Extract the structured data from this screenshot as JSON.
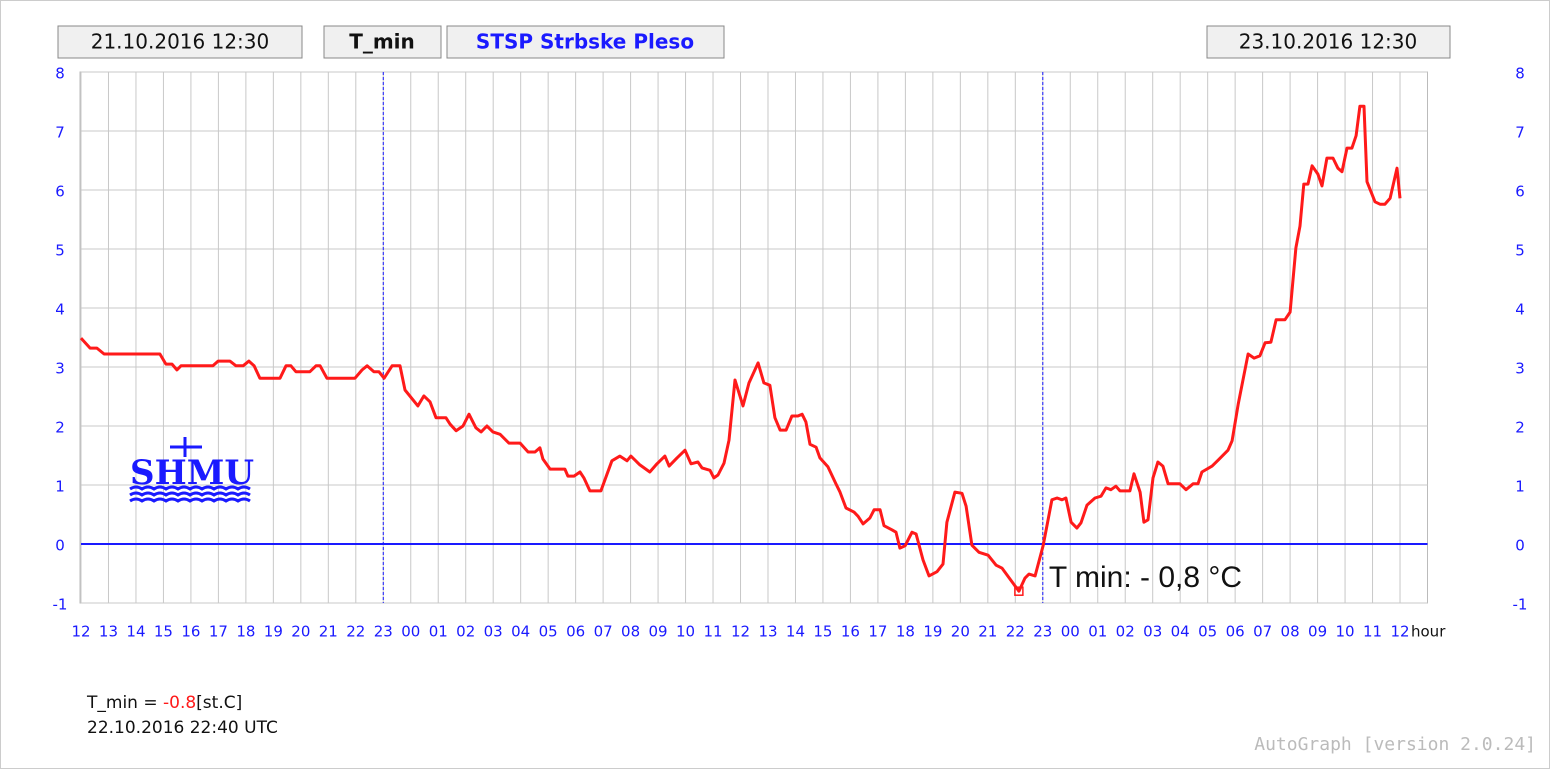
{
  "header": {
    "start": "21.10.2016 12:30",
    "variable": "T_min",
    "station": "STSP Strbske Pleso",
    "end": "23.10.2016 12:30"
  },
  "chart_data": {
    "type": "line",
    "color": "#ff1a1a",
    "axis_color": "#1a1aff",
    "grid": true,
    "logo": "SHMU",
    "xlabel": "hour",
    "xlim": [
      0,
      49
    ],
    "ylim": [
      -1,
      8
    ],
    "yticks": [
      -1,
      0,
      1,
      2,
      3,
      4,
      5,
      6,
      7,
      8
    ],
    "xticks": [
      {
        "value": 0,
        "label": "12"
      },
      {
        "value": 1,
        "label": "13"
      },
      {
        "value": 2,
        "label": "14"
      },
      {
        "value": 3,
        "label": "15"
      },
      {
        "value": 4,
        "label": "16"
      },
      {
        "value": 5,
        "label": "17"
      },
      {
        "value": 6,
        "label": "18"
      },
      {
        "value": 7,
        "label": "19"
      },
      {
        "value": 8,
        "label": "20"
      },
      {
        "value": 9,
        "label": "21"
      },
      {
        "value": 10,
        "label": "22"
      },
      {
        "value": 11,
        "label": "23"
      },
      {
        "value": 12,
        "label": "00"
      },
      {
        "value": 13,
        "label": "01"
      },
      {
        "value": 14,
        "label": "02"
      },
      {
        "value": 15,
        "label": "03"
      },
      {
        "value": 16,
        "label": "04"
      },
      {
        "value": 17,
        "label": "05"
      },
      {
        "value": 18,
        "label": "06"
      },
      {
        "value": 19,
        "label": "07"
      },
      {
        "value": 20,
        "label": "08"
      },
      {
        "value": 21,
        "label": "09"
      },
      {
        "value": 22,
        "label": "10"
      },
      {
        "value": 23,
        "label": "11"
      },
      {
        "value": 24,
        "label": "12"
      },
      {
        "value": 25,
        "label": "13"
      },
      {
        "value": 26,
        "label": "14"
      },
      {
        "value": 27,
        "label": "15"
      },
      {
        "value": 28,
        "label": "16"
      },
      {
        "value": 29,
        "label": "17"
      },
      {
        "value": 30,
        "label": "18"
      },
      {
        "value": 31,
        "label": "19"
      },
      {
        "value": 32,
        "label": "20"
      },
      {
        "value": 33,
        "label": "21"
      },
      {
        "value": 34,
        "label": "22"
      },
      {
        "value": 35,
        "label": "23"
      },
      {
        "value": 36,
        "label": "00"
      },
      {
        "value": 37,
        "label": "01"
      },
      {
        "value": 38,
        "label": "02"
      },
      {
        "value": 39,
        "label": "03"
      },
      {
        "value": 40,
        "label": "04"
      },
      {
        "value": 41,
        "label": "05"
      },
      {
        "value": 42,
        "label": "06"
      },
      {
        "value": 43,
        "label": "07"
      },
      {
        "value": 44,
        "label": "08"
      },
      {
        "value": 45,
        "label": "09"
      },
      {
        "value": 46,
        "label": "10"
      },
      {
        "value": 47,
        "label": "11"
      },
      {
        "value": 48,
        "label": "12"
      }
    ],
    "day_lines": [
      11,
      35
    ],
    "x": [
      0,
      0.33,
      0.58,
      0.84,
      2.87,
      3.09,
      3.31,
      3.49,
      3.64,
      3.78,
      4.8,
      4.99,
      5.42,
      5.64,
      5.9,
      6.11,
      6.3,
      6.51,
      7.24,
      7.46,
      7.64,
      7.82,
      8.33,
      8.55,
      8.7,
      8.95,
      9.97,
      10.23,
      10.41,
      10.66,
      10.84,
      11.03,
      11.32,
      11.61,
      11.79,
      12.26,
      12.48,
      12.7,
      12.92,
      13.28,
      13.43,
      13.65,
      13.9,
      14.12,
      14.37,
      14.56,
      14.77,
      14.99,
      15.25,
      15.57,
      15.98,
      16.27,
      16.52,
      16.7,
      16.81,
      17.07,
      17.61,
      17.72,
      17.94,
      18.16,
      18.3,
      18.52,
      18.92,
      19.32,
      19.61,
      19.87,
      20.01,
      20.34,
      20.7,
      20.96,
      21.25,
      21.4,
      21.69,
      21.98,
      22.2,
      22.45,
      22.6,
      22.89,
      23.03,
      23.18,
      23.4,
      23.58,
      23.8,
      24.09,
      24.31,
      24.64,
      24.85,
      25.07,
      25.25,
      25.44,
      25.66,
      25.87,
      26.09,
      26.24,
      26.38,
      26.53,
      26.75,
      26.89,
      27.18,
      27.47,
      27.62,
      27.84,
      28.13,
      28.28,
      28.46,
      28.71,
      28.86,
      29.08,
      29.22,
      29.51,
      29.66,
      29.8,
      29.99,
      30.24,
      30.39,
      30.64,
      30.86,
      31.15,
      31.37,
      31.51,
      31.8,
      32.06,
      32.21,
      32.42,
      32.68,
      33.01,
      33.3,
      33.52,
      33.99,
      34.13,
      34.35,
      34.5,
      34.72,
      35.01,
      35.33,
      35.52,
      35.7,
      35.84,
      36.03,
      36.24,
      36.39,
      36.61,
      36.9,
      37.12,
      37.3,
      37.48,
      37.66,
      37.81,
      38.17,
      38.32,
      38.54,
      38.68,
      38.83,
      39.01,
      39.19,
      39.37,
      39.56,
      39.99,
      40.21,
      40.47,
      40.65,
      40.79,
      41.16,
      41.38,
      41.74,
      41.89,
      42.11,
      42.47,
      42.69,
      42.9,
      43.09,
      43.3,
      43.49,
      43.81,
      44.0,
      44.21,
      44.36,
      44.5,
      44.65,
      44.8,
      45.01,
      45.16,
      45.34,
      45.56,
      45.74,
      45.89,
      46.07,
      46.25,
      46.4,
      46.54,
      46.69,
      46.8,
      47.09,
      47.27,
      47.45,
      47.64,
      47.89,
      48.0
    ],
    "values": [
      3.49,
      3.32,
      3.32,
      3.22,
      3.22,
      3.05,
      3.05,
      2.95,
      3.02,
      3.02,
      3.02,
      3.1,
      3.1,
      3.02,
      3.02,
      3.1,
      3.02,
      2.81,
      2.81,
      3.02,
      3.02,
      2.92,
      2.92,
      3.02,
      3.02,
      2.81,
      2.81,
      2.95,
      3.02,
      2.92,
      2.92,
      2.81,
      3.02,
      3.02,
      2.61,
      2.34,
      2.51,
      2.41,
      2.14,
      2.14,
      2.03,
      1.92,
      2.0,
      2.2,
      1.97,
      1.9,
      2.0,
      1.9,
      1.86,
      1.71,
      1.71,
      1.56,
      1.56,
      1.63,
      1.44,
      1.27,
      1.27,
      1.15,
      1.15,
      1.22,
      1.12,
      0.9,
      0.9,
      1.41,
      1.49,
      1.41,
      1.49,
      1.34,
      1.22,
      1.36,
      1.49,
      1.32,
      1.46,
      1.59,
      1.36,
      1.39,
      1.29,
      1.25,
      1.12,
      1.17,
      1.37,
      1.76,
      2.78,
      2.34,
      2.73,
      3.07,
      2.73,
      2.69,
      2.14,
      1.93,
      1.93,
      2.17,
      2.17,
      2.2,
      2.07,
      1.69,
      1.64,
      1.46,
      1.31,
      1.02,
      0.88,
      0.61,
      0.54,
      0.47,
      0.34,
      0.44,
      0.58,
      0.58,
      0.31,
      0.24,
      0.2,
      -0.07,
      -0.03,
      0.2,
      0.17,
      -0.27,
      -0.54,
      -0.47,
      -0.34,
      0.37,
      0.88,
      0.86,
      0.64,
      -0.02,
      -0.14,
      -0.19,
      -0.36,
      -0.41,
      -0.71,
      -0.8,
      -0.58,
      -0.51,
      -0.54,
      -0.03,
      0.75,
      0.78,
      0.75,
      0.78,
      0.37,
      0.27,
      0.36,
      0.66,
      0.78,
      0.81,
      0.95,
      0.92,
      0.98,
      0.9,
      0.9,
      1.19,
      0.88,
      0.37,
      0.41,
      1.12,
      1.39,
      1.32,
      1.02,
      1.02,
      0.92,
      1.02,
      1.02,
      1.22,
      1.32,
      1.42,
      1.59,
      1.75,
      2.37,
      3.22,
      3.15,
      3.19,
      3.41,
      3.42,
      3.8,
      3.8,
      3.93,
      5.02,
      5.39,
      6.1,
      6.1,
      6.41,
      6.27,
      6.07,
      6.54,
      6.54,
      6.37,
      6.31,
      6.71,
      6.71,
      6.92,
      7.42,
      7.42,
      6.14,
      5.8,
      5.76,
      5.76,
      5.86,
      6.37,
      5.86
    ],
    "annotation": {
      "text": "T min: - 0,8 °C",
      "x": 34.13,
      "y": -0.8
    }
  },
  "footer": {
    "label": "T_min =",
    "value": -0.8,
    "unit": "[st.C]",
    "time": "22.10.2016 22:40 UTC",
    "version": "AutoGraph [version 2.0.24]"
  }
}
